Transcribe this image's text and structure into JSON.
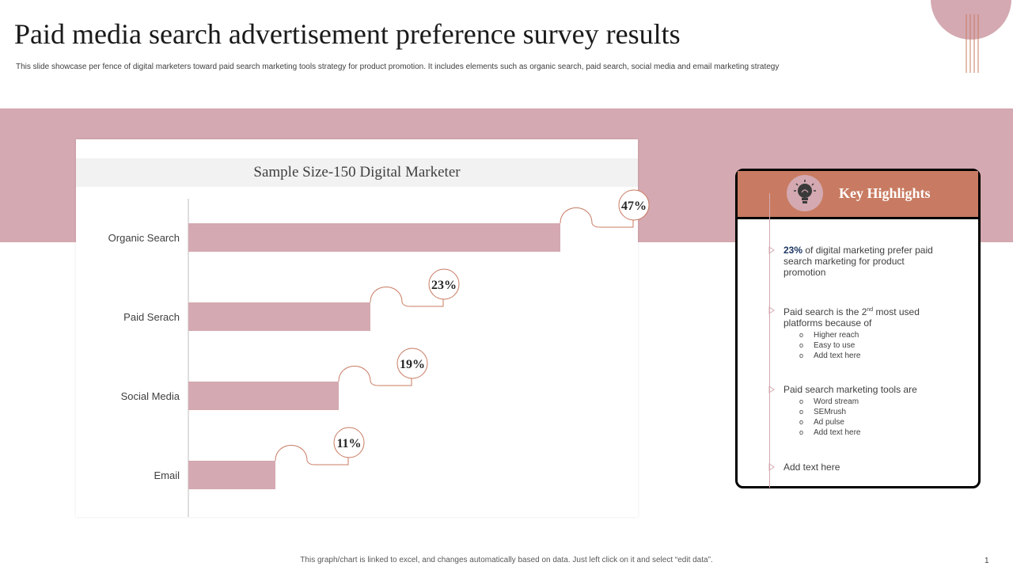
{
  "title": "Paid media search advertisement preference survey results",
  "subtitle": "This slide showcase per fence of digital marketers toward paid search marketing tools strategy for product promotion. It includes elements such as organic search, paid search, social media and email marketing strategy",
  "colors": {
    "accent": "#d4a9b1",
    "header": "#c87b62",
    "bubble_border": "#c87b62"
  },
  "chart_data": {
    "type": "bar",
    "orientation": "horizontal",
    "title": "Sample Size-150 Digital Marketer",
    "categories": [
      "Organic Search",
      "Paid Serach",
      "Social Media",
      "Email"
    ],
    "values": [
      47,
      23,
      19,
      11
    ],
    "data_labels": [
      "47%",
      "23%",
      "19%",
      "11%"
    ],
    "xlim": [
      0,
      55
    ],
    "grid": false,
    "legend": "none"
  },
  "highlights": {
    "title": "Key Highlights",
    "icon": "lightbulb-brain-icon",
    "item1": {
      "bold": "23%",
      "text": " of digital marketing prefer paid search marketing for product promotion"
    },
    "item2": {
      "text_a": "Paid search is the 2",
      "sup": "nd",
      "text_b": " most used platforms because of",
      "subs": [
        "Higher reach",
        "Easy to use",
        "Add text here"
      ]
    },
    "item3": {
      "text": "Paid search marketing tools are",
      "subs": [
        "Word stream",
        "SEMrush",
        "Ad pulse",
        "Add text here"
      ]
    },
    "item4": {
      "text": "Add text here"
    }
  },
  "footer": "This graph/chart is linked to excel, and changes automatically based on data. Just left click on it and select “edit data”.",
  "page_number": "1"
}
